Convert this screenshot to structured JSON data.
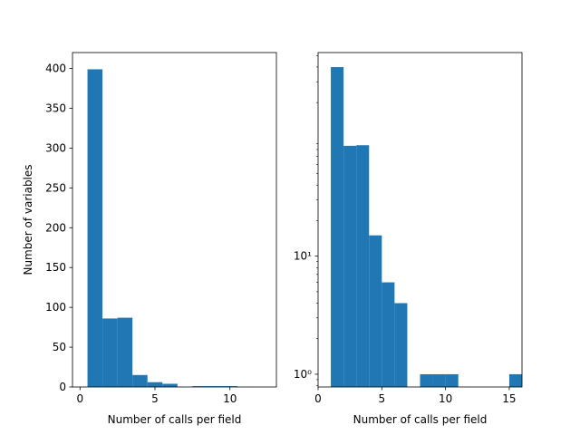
{
  "chart_data": [
    {
      "type": "bar",
      "scale": "linear",
      "xlabel": "Number of calls per field",
      "ylabel": "Number of variables",
      "xlim": [
        -0.5,
        13.1
      ],
      "ylim": [
        0,
        420
      ],
      "xticks": [
        0,
        5,
        10
      ],
      "yticks": [
        0,
        50,
        100,
        150,
        200,
        250,
        300,
        350,
        400
      ],
      "bin_width": 1.0,
      "bins": [
        {
          "x0": 0.5,
          "value": 399
        },
        {
          "x0": 1.5,
          "value": 86
        },
        {
          "x0": 2.5,
          "value": 87
        },
        {
          "x0": 3.5,
          "value": 15
        },
        {
          "x0": 4.5,
          "value": 6
        },
        {
          "x0": 5.5,
          "value": 4
        },
        {
          "x0": 7.5,
          "value": 1
        },
        {
          "x0": 8.5,
          "value": 1
        },
        {
          "x0": 9.5,
          "value": 1
        }
      ],
      "color": "#1f77b4"
    },
    {
      "type": "bar",
      "scale": "log",
      "xlabel": "Number of calls per field",
      "ylabel": "",
      "xlim": [
        0,
        16
      ],
      "ylim": [
        0.78,
        530
      ],
      "xticks": [
        0,
        5,
        10,
        15
      ],
      "yticks": [
        1,
        10
      ],
      "ytick_labels": [
        "10⁰",
        "10¹"
      ],
      "bin_width": 1.0,
      "bins": [
        {
          "x0": 1,
          "value": 399
        },
        {
          "x0": 2,
          "value": 86
        },
        {
          "x0": 3,
          "value": 87
        },
        {
          "x0": 4,
          "value": 15
        },
        {
          "x0": 5,
          "value": 6
        },
        {
          "x0": 6,
          "value": 4
        },
        {
          "x0": 8,
          "value": 1
        },
        {
          "x0": 9,
          "value": 1
        },
        {
          "x0": 10,
          "value": 1
        },
        {
          "x0": 15,
          "value": 1
        }
      ],
      "color": "#1f77b4"
    }
  ]
}
